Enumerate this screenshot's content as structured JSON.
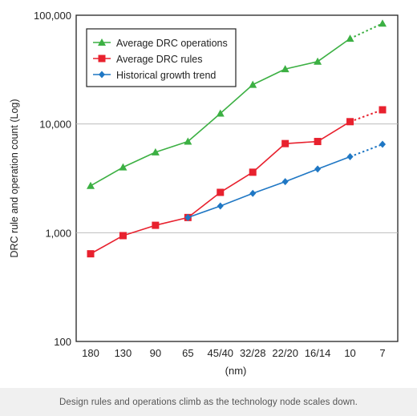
{
  "caption": "Design rules and operations climb as the technology node scales down.",
  "chart_data": {
    "type": "line",
    "title": "",
    "xlabel": "(nm)",
    "ylabel": "DRC rule and operation count (Log)",
    "yscale": "log",
    "ylim": [
      100,
      100000
    ],
    "yticks": [
      100,
      1000,
      10000,
      100000
    ],
    "ytick_labels": [
      "100",
      "1,000",
      "10,000",
      "100,000"
    ],
    "categories": [
      "180",
      "130",
      "90",
      "65",
      "45/40",
      "32/28",
      "22/20",
      "16/14",
      "10",
      "7"
    ],
    "grid": "horizontal",
    "legend_position": "top-left",
    "projected_from_index": 8,
    "series": [
      {
        "name": "Average DRC operations",
        "color": "#3cb043",
        "marker": "triangle",
        "values": [
          2700,
          4000,
          5500,
          6900,
          12500,
          23000,
          32000,
          37500,
          61000,
          84000
        ]
      },
      {
        "name": "Average DRC rules",
        "color": "#e8212e",
        "marker": "square",
        "values": [
          null,
          null,
          null,
          null,
          null,
          null,
          null,
          null,
          null,
          null
        ],
        "values_full": [
          640,
          940,
          1170,
          1380,
          2350,
          3600,
          6600,
          6900,
          10500,
          13500
        ]
      },
      {
        "name": "Historical growth trend",
        "color": "#1f77c4",
        "marker": "diamond",
        "values": [
          null,
          null,
          null,
          1380,
          1760,
          2300,
          2950,
          3850,
          5000,
          6500
        ]
      }
    ]
  }
}
